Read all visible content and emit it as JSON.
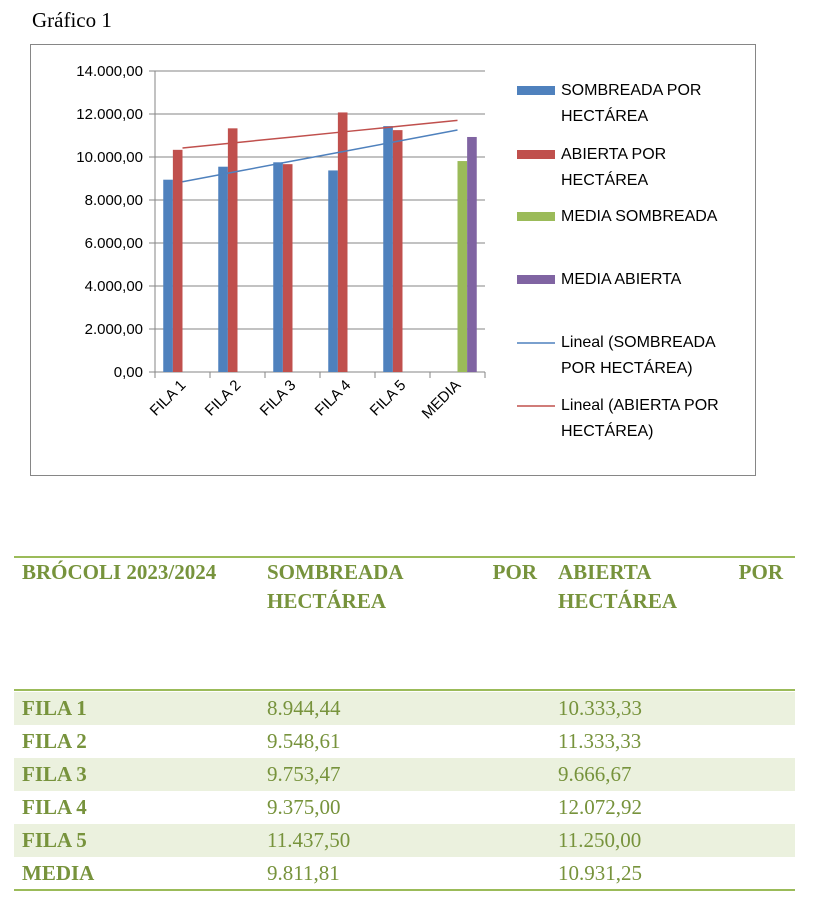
{
  "caption": "Gráfico 1",
  "chart_data": {
    "type": "bar",
    "categories": [
      "FILA 1",
      "FILA 2",
      "FILA 3",
      "FILA 4",
      "FILA 5",
      "MEDIA"
    ],
    "series": [
      {
        "name": "SOMBREADA POR HECTÁREA",
        "type": "bar",
        "color": "#4f81bd",
        "values": [
          8944.44,
          9548.61,
          9753.47,
          9375.0,
          11437.5,
          null
        ]
      },
      {
        "name": "ABIERTA POR HECTÁREA",
        "type": "bar",
        "color": "#c0504d",
        "values": [
          10333.33,
          11333.33,
          9666.67,
          12072.92,
          11250.0,
          null
        ]
      },
      {
        "name": "MEDIA SOMBREADA",
        "type": "bar",
        "color": "#9bbb59",
        "values": [
          null,
          null,
          null,
          null,
          null,
          9811.81
        ]
      },
      {
        "name": "MEDIA ABIERTA",
        "type": "bar",
        "color": "#8064a2",
        "values": [
          null,
          null,
          null,
          null,
          null,
          10931.25
        ]
      },
      {
        "name": "Lineal (SOMBREADA POR HECTÁREA)",
        "type": "line",
        "color": "#4f81bd",
        "values": [
          8849,
          9331,
          9812,
          10293,
          10774,
          11256
        ]
      },
      {
        "name": "Lineal (ABIERTA POR HECTÁREA)",
        "type": "line",
        "color": "#c0504d",
        "values": [
          10420,
          10677,
          10931,
          11189,
          11446,
          11703
        ]
      }
    ],
    "ylim": [
      0,
      14000
    ],
    "yticks": [
      {
        "value": 0,
        "label": "0,00"
      },
      {
        "value": 2000,
        "label": "2.000,00"
      },
      {
        "value": 4000,
        "label": "4.000,00"
      },
      {
        "value": 6000,
        "label": "6.000,00"
      },
      {
        "value": 8000,
        "label": "8.000,00"
      },
      {
        "value": 10000,
        "label": "10.000,00"
      },
      {
        "value": 12000,
        "label": "12.000,00"
      },
      {
        "value": 14000,
        "label": "14.000,00"
      }
    ],
    "grid": true,
    "legend": "right"
  },
  "table": {
    "header": [
      "BRÓCOLI 2023/2024",
      "SOMBREADA POR HECTÁREA",
      "ABIERTA POR HECTÁREA"
    ],
    "rows": [
      [
        "FILA 1",
        "8.944,44",
        "10.333,33"
      ],
      [
        "FILA 2",
        "9.548,61",
        "11.333,33"
      ],
      [
        "FILA 3",
        "9.753,47",
        "9.666,67"
      ],
      [
        "FILA 4",
        "9.375,00",
        "12.072,92"
      ],
      [
        "FILA 5",
        "11.437,50",
        "11.250,00"
      ],
      [
        "MEDIA",
        "9.811,81",
        "10.931,25"
      ]
    ]
  }
}
